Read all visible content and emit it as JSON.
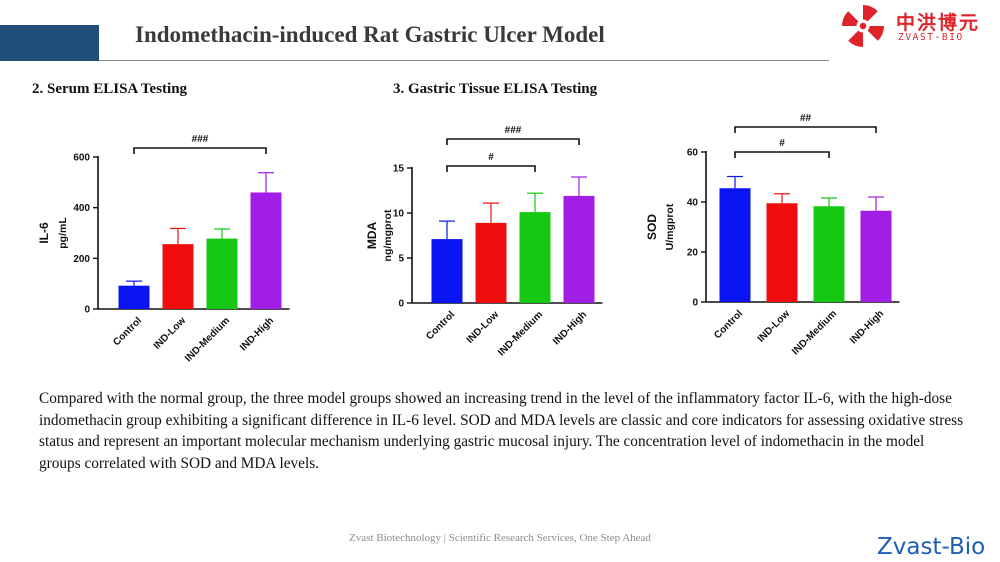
{
  "header": {
    "title": "Indomethacin-induced Rat Gastric Ulcer Model"
  },
  "logo": {
    "cn": "中洪博元",
    "en": "ZVAST-BIO"
  },
  "sections": {
    "serum": "2. Serum ELISA Testing",
    "tissue": "3. Gastric Tissue ELISA Testing"
  },
  "colors": {
    "Control": "#0a14f0",
    "IND-Low": "#f00d0d",
    "IND-Medium": "#14c814",
    "IND-High": "#a01ee6"
  },
  "chart_data": [
    {
      "type": "bar",
      "categories": [
        "Control",
        "IND-Low",
        "IND-Medium",
        "IND-High"
      ],
      "values": [
        92,
        256,
        278,
        460
      ],
      "errors": [
        18,
        62,
        38,
        78
      ],
      "ylabel": [
        "IL-6",
        "pg/mL"
      ],
      "ylim": [
        0,
        600
      ],
      "yticks": [
        0,
        200,
        400,
        600
      ],
      "annotations": [
        {
          "from": 0,
          "to": 3,
          "label": "###"
        }
      ]
    },
    {
      "type": "bar",
      "categories": [
        "Control",
        "IND-Low",
        "IND-Medium",
        "IND-High"
      ],
      "values": [
        7.1,
        8.9,
        10.1,
        11.9
      ],
      "errors": [
        2.0,
        2.2,
        2.1,
        2.1
      ],
      "ylabel": [
        "MDA",
        "ng/mgprot"
      ],
      "ylim": [
        0,
        15
      ],
      "yticks": [
        0,
        5,
        10,
        15
      ],
      "annotations": [
        {
          "from": 0,
          "to": 2,
          "label": "#"
        },
        {
          "from": 0,
          "to": 3,
          "label": "###"
        }
      ]
    },
    {
      "type": "bar",
      "categories": [
        "Control",
        "IND-Low",
        "IND-Medium",
        "IND-High"
      ],
      "values": [
        45.5,
        39.5,
        38.3,
        36.5
      ],
      "errors": [
        4.7,
        3.8,
        3.3,
        5.5
      ],
      "ylabel": [
        "SOD",
        "U/mgprot"
      ],
      "ylim": [
        0,
        60
      ],
      "yticks": [
        0,
        20,
        40,
        60
      ],
      "annotations": [
        {
          "from": 0,
          "to": 2,
          "label": "#"
        },
        {
          "from": 0,
          "to": 3,
          "label": "##"
        }
      ]
    }
  ],
  "paragraph": "Compared with the normal group, the three model groups showed an increasing trend in the level of the inflammatory factor IL-6, with the high-dose indomethacin group exhibiting a significant difference in IL-6 level. SOD and MDA levels are classic and core indicators for assessing oxidative stress status and represent an important molecular mechanism underlying gastric mucosal injury. The concentration level of indomethacin in the model groups correlated with SOD and MDA levels.",
  "footer": "Zvast Biotechnology |  Scientific Research Services, One Step Ahead",
  "brand": "Zvast-Bio"
}
